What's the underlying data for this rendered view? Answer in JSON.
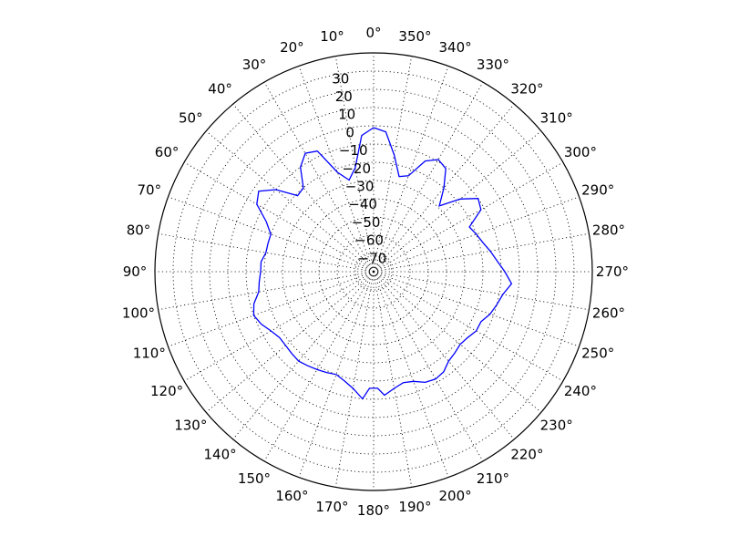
{
  "chart_data": {
    "type": "line",
    "coordinate_system": "polar",
    "theta_direction": "counterclockwise",
    "theta_zero_location": "top",
    "rlim": [
      -80,
      40
    ],
    "grid": true,
    "angle_ticks": [
      0,
      10,
      20,
      30,
      40,
      50,
      60,
      70,
      80,
      90,
      100,
      110,
      120,
      130,
      140,
      150,
      160,
      170,
      180,
      190,
      200,
      210,
      220,
      230,
      240,
      250,
      260,
      270,
      280,
      290,
      300,
      310,
      320,
      330,
      340,
      350
    ],
    "angle_tick_labels": [
      "0°",
      "10°",
      "20°",
      "30°",
      "40°",
      "50°",
      "60°",
      "70°",
      "80°",
      "90°",
      "100°",
      "110°",
      "120°",
      "130°",
      "140°",
      "150°",
      "160°",
      "170°",
      "180°",
      "190°",
      "200°",
      "210°",
      "220°",
      "230°",
      "240°",
      "250°",
      "260°",
      "270°",
      "280°",
      "290°",
      "300°",
      "310°",
      "320°",
      "330°",
      "340°",
      "350°"
    ],
    "radial_ticks": [
      -70,
      -60,
      -50,
      -40,
      -30,
      -20,
      -10,
      0,
      10,
      20,
      30
    ],
    "radial_tick_labels": [
      "−70",
      "−60",
      "−50",
      "−40",
      "−30",
      "−20",
      "−10",
      "0",
      "10",
      "20",
      "30"
    ],
    "radial_label_angle": 10,
    "series": [
      {
        "color": "#0000ff",
        "theta": [
          0,
          5,
          10,
          15,
          20,
          25,
          30,
          35,
          40,
          45,
          50,
          55,
          60,
          65,
          70,
          75,
          80,
          85,
          90,
          95,
          100,
          105,
          110,
          115,
          120,
          125,
          130,
          135,
          140,
          145,
          150,
          155,
          160,
          165,
          170,
          175,
          178,
          182,
          185,
          190,
          195,
          200,
          205,
          210,
          215,
          220,
          225,
          230,
          235,
          240,
          245,
          250,
          255,
          260,
          265,
          270,
          275,
          280,
          285,
          290,
          295,
          300,
          305,
          310,
          315,
          320,
          325,
          330,
          335,
          340,
          345,
          350,
          355,
          360
        ],
        "r": [
          -1.0,
          -5.0,
          -22.0,
          -28.0,
          -22.0,
          -7.0,
          -5.0,
          -10.0,
          -20.0,
          -21.0,
          -10.0,
          -3.0,
          -6.0,
          -15.0,
          -20.0,
          -20.0,
          -20.0,
          -18.0,
          -18.0,
          -17.0,
          -16.0,
          -12.0,
          -10.0,
          -12.0,
          -15.0,
          -17.0,
          -17.0,
          -16.5,
          -16.0,
          -17.0,
          -18.0,
          -19.0,
          -20.0,
          -18.0,
          -15.0,
          -10.0,
          -16.0,
          -16.0,
          -12.0,
          -15.0,
          -17.0,
          -16.0,
          -13.0,
          -12.0,
          -13.0,
          -16.0,
          -17.0,
          -18.0,
          -17.0,
          -15.0,
          -15.0,
          -12.0,
          -10.0,
          -8.0,
          -4.0,
          -8.0,
          -12.0,
          -15.0,
          -18.0,
          -20.0,
          -22.0,
          -12.0,
          -10.0,
          -18.0,
          -29.0,
          -20.0,
          -11.0,
          -9.0,
          -13.0,
          -24.0,
          -26.0,
          -15.0,
          -3.0,
          -1.0
        ]
      }
    ]
  }
}
